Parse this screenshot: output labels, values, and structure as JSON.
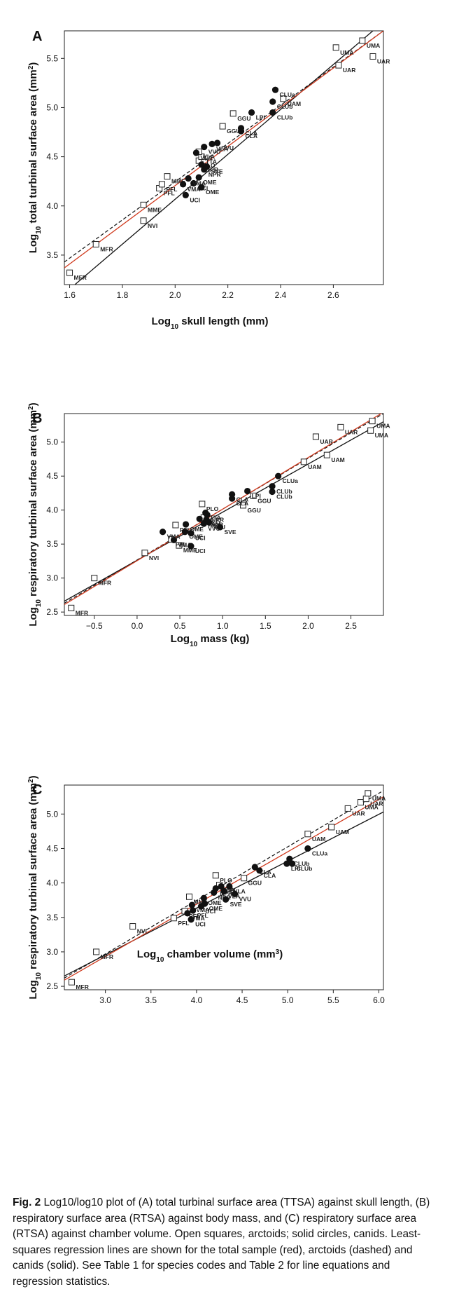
{
  "caption": {
    "fig_label": "Fig. 2",
    "text": "Log10/log10 plot of (A) total turbinal surface area (TTSA) against skull length, (B) respiratory surface area (RTSA) against body mass, and (C) respiratory surface area (RTSA) against chamber volume. Open squares, arctoids; solid circles, canids. Least-squares regression lines are shown for the total sample (red), arctoids (dashed) and canids (solid). See Table 1 for species codes and Table 2 for line equations and regression statistics."
  },
  "colors": {
    "total": "#d03a1e",
    "arctoid": "#111111",
    "canid": "#111111"
  },
  "chart_data": [
    {
      "panel": "A",
      "type": "scatter",
      "xlabel": "Log10 skull length (mm)",
      "ylabel": "Log10 total turbinal surface area (mm2)",
      "xlim": [
        1.58,
        2.79
      ],
      "ylim": [
        3.2,
        5.78
      ],
      "xticks": [
        1.6,
        1.8,
        2.0,
        2.2,
        2.4,
        2.6
      ],
      "yticks": [
        3.5,
        4.0,
        4.5,
        5.0,
        5.5
      ],
      "xtick_labels": [
        "1.6",
        "1.8",
        "2.0",
        "2.2",
        "2.4",
        "2.6"
      ],
      "ytick_labels": [
        "3.5",
        "4.0",
        "4.5",
        "5.0",
        "5.5"
      ],
      "arctoids": [
        {
          "label": "MFR",
          "x": 1.6,
          "y": 3.32
        },
        {
          "label": "MFR",
          "x": 1.7,
          "y": 3.61
        },
        {
          "label": "NVI",
          "x": 1.88,
          "y": 3.85
        },
        {
          "label": "MME",
          "x": 1.88,
          "y": 4.01
        },
        {
          "label": "PFL",
          "x": 1.94,
          "y": 4.18
        },
        {
          "label": "PFL",
          "x": 1.95,
          "y": 4.22
        },
        {
          "label": "MME",
          "x": 1.97,
          "y": 4.3
        },
        {
          "label": "PLO",
          "x": 2.09,
          "y": 4.46
        },
        {
          "label": "TTA",
          "x": 2.1,
          "y": 4.5
        },
        {
          "label": "VLA",
          "x": 2.09,
          "y": 4.55
        },
        {
          "label": "GGU",
          "x": 2.18,
          "y": 4.81
        },
        {
          "label": "GGU",
          "x": 2.22,
          "y": 4.94
        },
        {
          "label": "UAM",
          "x": 2.41,
          "y": 5.09
        },
        {
          "label": "UMA",
          "x": 2.61,
          "y": 5.61
        },
        {
          "label": "UAR",
          "x": 2.62,
          "y": 5.43
        },
        {
          "label": "UMA",
          "x": 2.71,
          "y": 5.68
        },
        {
          "label": "UAR",
          "x": 2.75,
          "y": 5.52
        }
      ],
      "canids": [
        {
          "label": "UCI",
          "x": 2.04,
          "y": 4.11
        },
        {
          "label": "VMA",
          "x": 2.03,
          "y": 4.22
        },
        {
          "label": "UCI",
          "x": 2.07,
          "y": 4.23
        },
        {
          "label": "VMA",
          "x": 2.05,
          "y": 4.28
        },
        {
          "label": "OME",
          "x": 2.1,
          "y": 4.19
        },
        {
          "label": "OME",
          "x": 2.09,
          "y": 4.29
        },
        {
          "label": "NPR",
          "x": 2.11,
          "y": 4.37
        },
        {
          "label": "NPR",
          "x": 2.1,
          "y": 4.42
        },
        {
          "label": "SVE",
          "x": 2.12,
          "y": 4.4
        },
        {
          "label": "VLA",
          "x": 2.08,
          "y": 4.54
        },
        {
          "label": "VVU",
          "x": 2.11,
          "y": 4.6
        },
        {
          "label": "VLA",
          "x": 2.14,
          "y": 4.63
        },
        {
          "label": "VVU",
          "x": 2.16,
          "y": 4.64
        },
        {
          "label": "CLA",
          "x": 2.25,
          "y": 4.76
        },
        {
          "label": "CLA",
          "x": 2.25,
          "y": 4.79
        },
        {
          "label": "LPI",
          "x": 2.29,
          "y": 4.95
        },
        {
          "label": "CLUb",
          "x": 2.37,
          "y": 4.95
        },
        {
          "label": "CLUb",
          "x": 2.37,
          "y": 5.06
        },
        {
          "label": "CLUa",
          "x": 2.38,
          "y": 5.18
        }
      ],
      "lines": {
        "total": {
          "x": [
            1.58,
            2.79
          ],
          "y": [
            3.37,
            5.78
          ]
        },
        "arctoid": {
          "x": [
            1.58,
            2.79
          ],
          "y": [
            3.43,
            5.78
          ]
        },
        "canid": {
          "x": [
            1.62,
            2.75
          ],
          "y": [
            3.2,
            5.78
          ]
        }
      }
    },
    {
      "panel": "B",
      "type": "scatter",
      "xlabel": "Log10 mass (kg)",
      "ylabel": "Log10 respiratory turbinal surface area (mm2)",
      "xlim": [
        -0.85,
        2.88
      ],
      "ylim": [
        2.45,
        5.42
      ],
      "xticks": [
        -0.5,
        0.0,
        0.5,
        1.0,
        1.5,
        2.0,
        2.5
      ],
      "yticks": [
        2.5,
        3.0,
        3.5,
        4.0,
        4.5,
        5.0
      ],
      "xtick_labels": [
        "−0.5",
        "0.0",
        "0.5",
        "1.0",
        "1.5",
        "2.0",
        "2.5"
      ],
      "ytick_labels": [
        "2.5",
        "3.0",
        "3.5",
        "4.0",
        "4.5",
        "5.0"
      ],
      "arctoids": [
        {
          "label": "MFR",
          "x": -0.77,
          "y": 2.56
        },
        {
          "label": "MFR",
          "x": -0.5,
          "y": 3.0
        },
        {
          "label": "NVI",
          "x": 0.09,
          "y": 3.37
        },
        {
          "label": "MME",
          "x": 0.49,
          "y": 3.48
        },
        {
          "label": "PFL",
          "x": 0.4,
          "y": 3.57
        },
        {
          "label": "PFL",
          "x": 0.45,
          "y": 3.78
        },
        {
          "label": "PLO",
          "x": 0.78,
          "y": 3.89
        },
        {
          "label": "PLO",
          "x": 0.76,
          "y": 4.09
        },
        {
          "label": "GGU",
          "x": 1.24,
          "y": 4.07
        },
        {
          "label": "GGU",
          "x": 1.36,
          "y": 4.21
        },
        {
          "label": "UAM",
          "x": 1.95,
          "y": 4.71
        },
        {
          "label": "UAM",
          "x": 2.22,
          "y": 4.81
        },
        {
          "label": "UAR",
          "x": 2.09,
          "y": 5.08
        },
        {
          "label": "UAR",
          "x": 2.38,
          "y": 5.22
        },
        {
          "label": "UMA",
          "x": 2.73,
          "y": 5.17
        },
        {
          "label": "UMA",
          "x": 2.75,
          "y": 5.31
        }
      ],
      "canids": [
        {
          "label": "VMA",
          "x": 0.43,
          "y": 3.56
        },
        {
          "label": "VMA",
          "x": 0.3,
          "y": 3.68
        },
        {
          "label": "OME",
          "x": 0.56,
          "y": 3.68
        },
        {
          "label": "UCI",
          "x": 0.63,
          "y": 3.47
        },
        {
          "label": "UCI",
          "x": 0.63,
          "y": 3.66
        },
        {
          "label": "OME",
          "x": 0.57,
          "y": 3.79
        },
        {
          "label": "VLA",
          "x": 0.73,
          "y": 3.87
        },
        {
          "label": "NPR",
          "x": 0.81,
          "y": 3.86
        },
        {
          "label": "NPR",
          "x": 0.82,
          "y": 3.93
        },
        {
          "label": "TTA",
          "x": 0.8,
          "y": 3.96
        },
        {
          "label": "VVU",
          "x": 0.78,
          "y": 3.8
        },
        {
          "label": "VVU",
          "x": 0.84,
          "y": 3.82
        },
        {
          "label": "SVE",
          "x": 0.97,
          "y": 3.75
        },
        {
          "label": "CLA",
          "x": 1.11,
          "y": 4.17
        },
        {
          "label": "CLA",
          "x": 1.11,
          "y": 4.23
        },
        {
          "label": "LPI",
          "x": 1.29,
          "y": 4.28
        },
        {
          "label": "CLUb",
          "x": 1.58,
          "y": 4.27
        },
        {
          "label": "CLUb",
          "x": 1.58,
          "y": 4.35
        },
        {
          "label": "CLUa",
          "x": 1.65,
          "y": 4.5
        }
      ],
      "lines": {
        "total": {
          "x": [
            -0.85,
            2.88
          ],
          "y": [
            2.61,
            5.44
          ]
        },
        "arctoid": {
          "x": [
            -0.85,
            2.88
          ],
          "y": [
            2.63,
            5.42
          ]
        },
        "canid": {
          "x": [
            -0.85,
            2.88
          ],
          "y": [
            2.66,
            5.3
          ]
        }
      }
    },
    {
      "panel": "C",
      "type": "scatter",
      "xlabel": "Log10 chamber volume (mm3)",
      "ylabel": "Log10 respiratory turbinal surface area (mm2)",
      "xlim": [
        2.55,
        6.05
      ],
      "ylim": [
        2.45,
        5.42
      ],
      "xticks": [
        3.0,
        3.5,
        4.0,
        4.5,
        5.0,
        5.5,
        6.0
      ],
      "yticks": [
        2.5,
        3.0,
        3.5,
        4.0,
        4.5,
        5.0
      ],
      "xtick_labels": [
        "3.0",
        "3.5",
        "4.0",
        "4.5",
        "5.0",
        "5.5",
        "6.0"
      ],
      "ytick_labels": [
        "2.5",
        "3.0",
        "3.5",
        "4.0",
        "4.5",
        "5.0"
      ],
      "arctoids": [
        {
          "label": "MFR",
          "x": 2.63,
          "y": 2.56
        },
        {
          "label": "MFR",
          "x": 2.9,
          "y": 3.0
        },
        {
          "label": "NVI",
          "x": 3.3,
          "y": 3.37
        },
        {
          "label": "PFL",
          "x": 3.75,
          "y": 3.49
        },
        {
          "label": "PFL",
          "x": 3.87,
          "y": 3.59
        },
        {
          "label": "MME",
          "x": 3.92,
          "y": 3.8
        },
        {
          "label": "PLO",
          "x": 4.21,
          "y": 4.11
        },
        {
          "label": "TTA",
          "x": 4.25,
          "y": 3.97
        },
        {
          "label": "GGU",
          "x": 4.52,
          "y": 4.07
        },
        {
          "label": "UAM",
          "x": 5.22,
          "y": 4.71
        },
        {
          "label": "UAM",
          "x": 5.48,
          "y": 4.81
        },
        {
          "label": "UAR",
          "x": 5.66,
          "y": 5.08
        },
        {
          "label": "UMA",
          "x": 5.8,
          "y": 5.17
        },
        {
          "label": "UAR",
          "x": 5.86,
          "y": 5.22
        },
        {
          "label": "UMA",
          "x": 5.88,
          "y": 5.3
        }
      ],
      "canids": [
        {
          "label": "UCI",
          "x": 3.94,
          "y": 3.47
        },
        {
          "label": "VMA",
          "x": 3.9,
          "y": 3.56
        },
        {
          "label": "PFL",
          "x": 3.96,
          "y": 3.6
        },
        {
          "label": "VMA",
          "x": 3.95,
          "y": 3.68
        },
        {
          "label": "UCI",
          "x": 4.05,
          "y": 3.66
        },
        {
          "label": "OME",
          "x": 4.09,
          "y": 3.7
        },
        {
          "label": "OME",
          "x": 4.08,
          "y": 3.78
        },
        {
          "label": "NPR",
          "x": 4.19,
          "y": 3.86
        },
        {
          "label": "NPR",
          "x": 4.21,
          "y": 3.92
        },
        {
          "label": "TTA",
          "x": 4.27,
          "y": 3.95
        },
        {
          "label": "VLA",
          "x": 4.36,
          "y": 3.95
        },
        {
          "label": "VLA",
          "x": 4.3,
          "y": 3.88
        },
        {
          "label": "SVE",
          "x": 4.32,
          "y": 3.76
        },
        {
          "label": "VVU",
          "x": 4.42,
          "y": 3.84
        },
        {
          "label": "CLA",
          "x": 4.64,
          "y": 4.23
        },
        {
          "label": "CLA",
          "x": 4.69,
          "y": 4.18
        },
        {
          "label": "LPI",
          "x": 4.99,
          "y": 4.28
        },
        {
          "label": "CLUb",
          "x": 5.02,
          "y": 4.35
        },
        {
          "label": "CLUb",
          "x": 5.05,
          "y": 4.28
        },
        {
          "label": "CLUa",
          "x": 5.22,
          "y": 4.5
        }
      ],
      "lines": {
        "total": {
          "x": [
            2.55,
            6.05
          ],
          "y": [
            2.59,
            5.25
          ]
        },
        "arctoid": {
          "x": [
            2.55,
            6.05
          ],
          "y": [
            2.62,
            5.34
          ]
        },
        "canid": {
          "x": [
            2.55,
            6.05
          ],
          "y": [
            2.65,
            5.03
          ]
        }
      }
    }
  ]
}
